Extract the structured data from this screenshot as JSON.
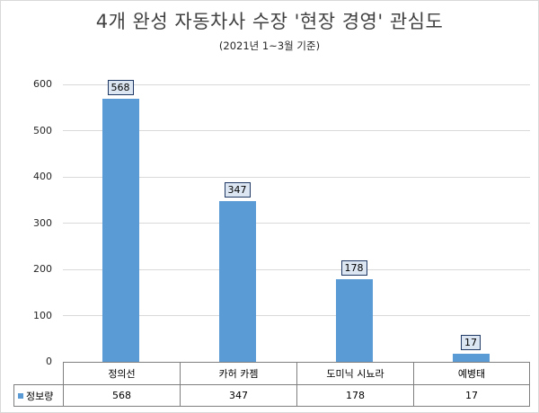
{
  "chart_data": {
    "type": "bar",
    "title": "4개 완성 자동차사 수장 '현장 경영' 관심도",
    "subtitle": "(2021년 1~3월 기준)",
    "categories": [
      "정의선",
      "카허 카젬",
      "도미닉 시뇨라",
      "예병태"
    ],
    "series": [
      {
        "name": "정보량",
        "values": [
          568,
          347,
          178,
          17
        ],
        "color": "#5b9bd5"
      }
    ],
    "xlabel": "",
    "ylabel": "",
    "ylim": [
      0,
      600
    ],
    "yticks": [
      "0",
      "100",
      "200",
      "300",
      "400",
      "500",
      "600"
    ],
    "grid": true,
    "legend_position": "data-table",
    "data_labels": [
      "568",
      "347",
      "178",
      "17"
    ]
  },
  "table": {
    "series_label": "정보량",
    "headers": [
      "정의선",
      "카허 카젬",
      "도미닉 시뇨라",
      "예병태"
    ],
    "values": [
      "568",
      "347",
      "178",
      "17"
    ]
  }
}
